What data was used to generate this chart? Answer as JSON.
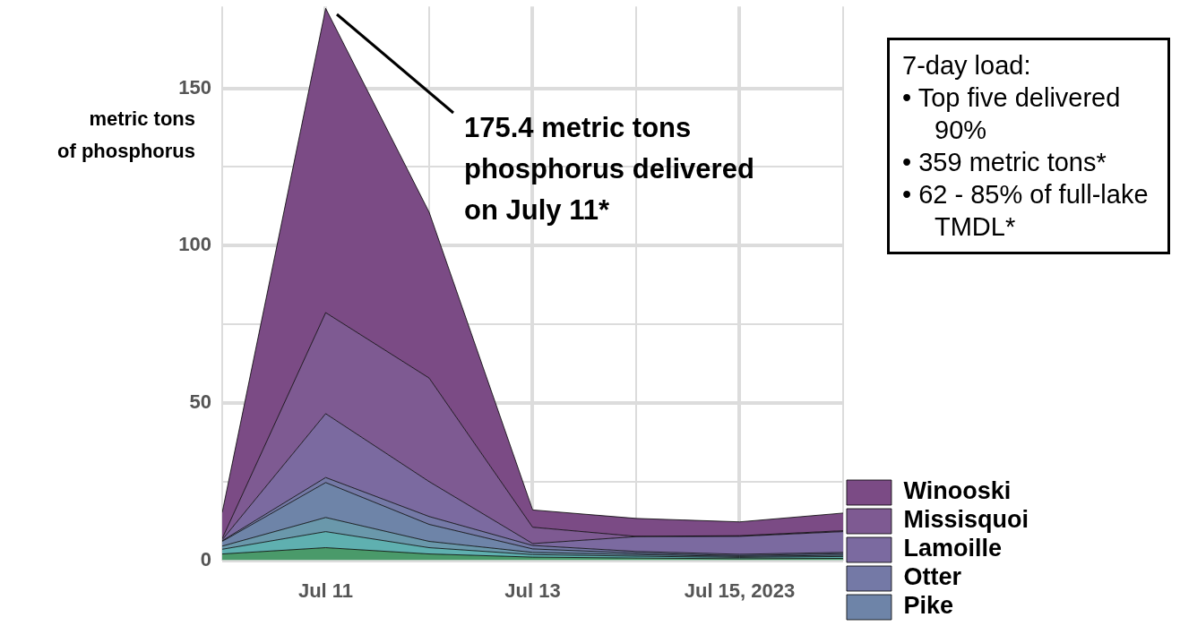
{
  "chart_data": {
    "type": "area",
    "ylabel": "metric tons\nof phosphorus",
    "stacked": true,
    "grid": true,
    "legend": "bottom right",
    "marker": "none",
    "x": [
      "2023-07-10",
      "2023-07-11",
      "2023-07-12",
      "2023-07-13",
      "2023-07-14",
      "2023-07-15",
      "2023-07-16"
    ],
    "xlim": [
      "2023-07-10",
      "2023-07-16"
    ],
    "xticks": [
      {
        "value": "2023-07-10",
        "label": null
      },
      {
        "value": "2023-07-11",
        "label": "Jul 11"
      },
      {
        "value": "2023-07-12",
        "label": null
      },
      {
        "value": "2023-07-13",
        "label": "Jul 13"
      },
      {
        "value": "2023-07-14",
        "label": null
      },
      {
        "value": "2023-07-15",
        "label": "Jul 15, 2023"
      },
      {
        "value": "2023-07-16",
        "label": null
      }
    ],
    "ylim": [
      0,
      176
    ],
    "yticks": [
      0,
      {
        "value": 25,
        "label": null
      },
      50,
      {
        "value": 75,
        "label": null
      },
      100,
      {
        "value": 125,
        "label": null
      },
      150
    ],
    "series": [
      {
        "color": "#4a9a6a",
        "values": [
          2,
          4,
          2,
          1,
          0.7,
          0.5,
          0.6
        ]
      },
      {
        "color": "#5fb0b0",
        "values": [
          1.5,
          5.1,
          2,
          0.8,
          0.6,
          0.4,
          0.6
        ]
      },
      {
        "color": "#6a98ab",
        "values": [
          1,
          4.5,
          2,
          0.7,
          0.5,
          0.3,
          0.4
        ]
      },
      {
        "name": "Pike",
        "color": "#6e84a8",
        "values": [
          1.5,
          11.1,
          5.4,
          1.1,
          0.5,
          0.3,
          0.5
        ]
      },
      {
        "name": "Otter",
        "color": "#7479a6",
        "values": [
          0.2,
          1.6,
          2.5,
          1.1,
          0.5,
          0.4,
          0.4
        ]
      },
      {
        "name": "Lamoille",
        "color": "#7b6aa0",
        "values": [
          0.3,
          20.3,
          11.1,
          0.6,
          4.7,
          5.7,
          6.6
        ]
      },
      {
        "name": "Missisquoi",
        "color": "#7e5a92",
        "values": [
          0.4,
          32.1,
          32.9,
          5.2,
          0.1,
          0.2,
          0.3
        ]
      },
      {
        "name": "Winooski",
        "color": "#7b4b85",
        "values": [
          8.3,
          96.7,
          52.7,
          5.5,
          5.7,
          4.4,
          5.6
        ]
      }
    ],
    "annotations": [
      "175.4 metric tons\nphosphorus delivered\non July 11*",
      "7-day load:\n• Top five delivered 90%\n• 359 metric tons*\n• 62 - 85% of full-lake TMDL*"
    ]
  }
}
